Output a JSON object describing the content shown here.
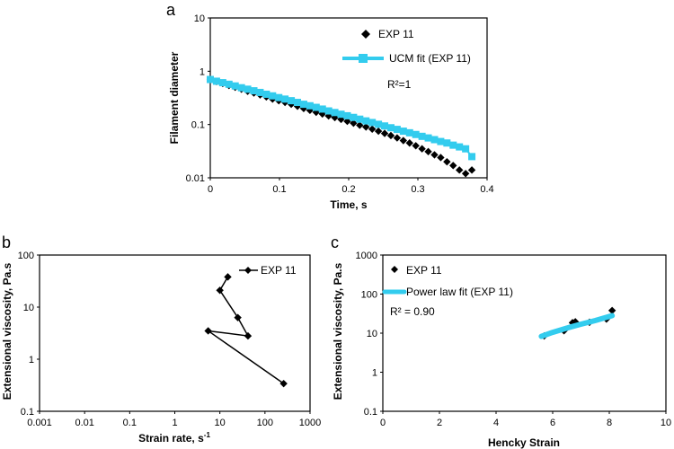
{
  "chart_data": [
    {
      "panel": "a",
      "type": "scatter",
      "xlabel": "Time, s",
      "ylabel": "Filament diameter",
      "xscale": "linear",
      "yscale": "log",
      "xlim": [
        0,
        0.4
      ],
      "ylim": [
        0.01,
        10
      ],
      "xticks": [
        "0",
        "0.1",
        "0.2",
        "0.3",
        "0.4"
      ],
      "yticks": [
        "0.01",
        "0.1",
        "1",
        "10"
      ],
      "grid": false,
      "legend_position": "top-right",
      "annotation": "R²=1",
      "series": [
        {
          "name": "EXP 11",
          "marker": "diamond",
          "color": "#000000",
          "x": [
            0.0,
            0.009,
            0.018,
            0.027,
            0.036,
            0.045,
            0.054,
            0.063,
            0.072,
            0.081,
            0.09,
            0.099,
            0.108,
            0.117,
            0.126,
            0.135,
            0.144,
            0.153,
            0.162,
            0.171,
            0.18,
            0.189,
            0.198,
            0.207,
            0.216,
            0.225,
            0.234,
            0.243,
            0.252,
            0.261,
            0.27,
            0.279,
            0.288,
            0.297,
            0.306,
            0.315,
            0.324,
            0.333,
            0.342,
            0.351,
            0.36,
            0.369,
            0.378
          ],
          "y": [
            0.7,
            0.64,
            0.59,
            0.54,
            0.5,
            0.46,
            0.42,
            0.39,
            0.36,
            0.33,
            0.3,
            0.28,
            0.26,
            0.24,
            0.22,
            0.2,
            0.185,
            0.17,
            0.158,
            0.145,
            0.135,
            0.125,
            0.115,
            0.106,
            0.097,
            0.09,
            0.082,
            0.075,
            0.068,
            0.062,
            0.056,
            0.05,
            0.045,
            0.04,
            0.035,
            0.031,
            0.027,
            0.024,
            0.02,
            0.017,
            0.014,
            0.012,
            0.014
          ]
        },
        {
          "name": "UCM fit (EXP 11)",
          "marker": "square",
          "color": "#33ccee",
          "x": [
            0.0,
            0.009,
            0.018,
            0.027,
            0.036,
            0.045,
            0.054,
            0.063,
            0.072,
            0.081,
            0.09,
            0.099,
            0.108,
            0.117,
            0.126,
            0.135,
            0.144,
            0.153,
            0.162,
            0.171,
            0.18,
            0.189,
            0.198,
            0.207,
            0.216,
            0.225,
            0.234,
            0.243,
            0.252,
            0.261,
            0.27,
            0.279,
            0.288,
            0.297,
            0.306,
            0.315,
            0.324,
            0.333,
            0.342,
            0.351,
            0.36,
            0.369,
            0.378
          ],
          "y": [
            0.7,
            0.65,
            0.61,
            0.57,
            0.53,
            0.49,
            0.46,
            0.43,
            0.4,
            0.37,
            0.345,
            0.32,
            0.3,
            0.28,
            0.26,
            0.24,
            0.225,
            0.21,
            0.195,
            0.18,
            0.168,
            0.156,
            0.146,
            0.136,
            0.126,
            0.117,
            0.109,
            0.101,
            0.094,
            0.087,
            0.081,
            0.075,
            0.07,
            0.065,
            0.06,
            0.056,
            0.052,
            0.048,
            0.045,
            0.041,
            0.038,
            0.035,
            0.025
          ]
        }
      ]
    },
    {
      "panel": "b",
      "type": "line",
      "xlabel": "Strain rate, s",
      "xlabel_superscript": "-1",
      "ylabel": "Extensional viscosity, Pa.s",
      "xscale": "log",
      "yscale": "log",
      "xlim": [
        0.001,
        1000
      ],
      "ylim": [
        0.1,
        100
      ],
      "xticks": [
        "0.001",
        "0.01",
        "0.1",
        "1",
        "10",
        "100",
        "1000"
      ],
      "yticks": [
        "0.1",
        "1",
        "10",
        "100"
      ],
      "grid": false,
      "legend_position": "top-right",
      "series": [
        {
          "name": "EXP 11",
          "marker": "diamond",
          "color": "#000000",
          "x": [
            15,
            10,
            25,
            42,
            5.5,
            260
          ],
          "y": [
            38,
            21,
            6.3,
            2.8,
            3.5,
            0.34
          ]
        }
      ]
    },
    {
      "panel": "c",
      "type": "scatter",
      "xlabel": "Hencky Strain",
      "ylabel": "Extensional viscosity, Pa.s",
      "xscale": "linear",
      "yscale": "log",
      "xlim": [
        0,
        10
      ],
      "ylim": [
        0.1,
        1000
      ],
      "xticks": [
        "0",
        "2",
        "4",
        "6",
        "8",
        "10"
      ],
      "yticks": [
        "0.1",
        "1",
        "10",
        "100",
        "1000"
      ],
      "grid": false,
      "legend_position": "top-left",
      "annotation": "R² = 0.90",
      "series": [
        {
          "name": "EXP 11",
          "marker": "diamond",
          "color": "#000000",
          "x": [
            5.7,
            6.4,
            6.7,
            6.8,
            7.3,
            7.9,
            8.1
          ],
          "y": [
            8.5,
            11.5,
            18.5,
            19.5,
            19,
            23,
            38
          ]
        },
        {
          "name": "Power law fit (EXP 11)",
          "marker": "line",
          "color": "#33ccee",
          "x": [
            5.6,
            6.0,
            6.5,
            7.0,
            7.5,
            8.1
          ],
          "y": [
            8.3,
            10.5,
            13.5,
            17.0,
            21.0,
            28.0
          ]
        }
      ]
    }
  ]
}
